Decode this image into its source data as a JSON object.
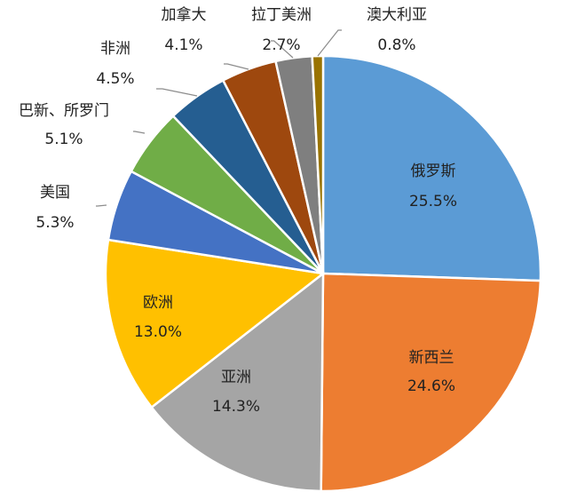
{
  "chart_data": {
    "type": "pie",
    "title": "",
    "slices": [
      {
        "label": "俄罗斯",
        "value": 25.5,
        "display": "25.5%",
        "color": "#5b9bd5"
      },
      {
        "label": "新西兰",
        "value": 24.6,
        "display": "24.6%",
        "color": "#ed7d31"
      },
      {
        "label": "亚洲",
        "value": 14.3,
        "display": "14.3%",
        "color": "#a5a5a5"
      },
      {
        "label": "欧洲",
        "value": 13.0,
        "display": "13.0%",
        "color": "#ffc000"
      },
      {
        "label": "美国",
        "value": 5.3,
        "display": "5.3%",
        "color": "#4472c4"
      },
      {
        "label": "巴新、所罗门",
        "value": 5.1,
        "display": "5.1%",
        "color": "#70ad47"
      },
      {
        "label": "非洲",
        "value": 4.5,
        "display": "4.5%",
        "color": "#255e91"
      },
      {
        "label": "加拿大",
        "value": 4.1,
        "display": "4.1%",
        "color": "#9e480e"
      },
      {
        "label": "拉丁美洲",
        "value": 2.7,
        "display": "2.7%",
        "color": "#7f7f7f"
      },
      {
        "label": "澳大利亚",
        "value": 0.8,
        "display": "0.8%",
        "color": "#997300"
      }
    ]
  }
}
